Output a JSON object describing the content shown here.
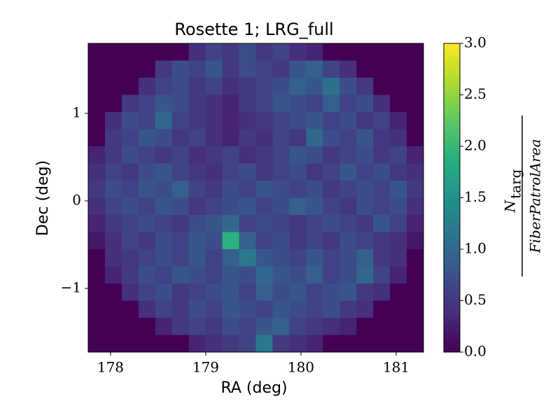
{
  "chart_data": {
    "type": "heatmap",
    "title": "Rosette 1; LRG_full",
    "x_label": "RA (deg)",
    "y_label": "Dec (deg)",
    "xlim": [
      177.765,
      181.287
    ],
    "ylim": [
      -1.728,
      1.8
    ],
    "xticks": [
      178,
      179,
      180,
      181
    ],
    "yticks": [
      {
        "value": -1,
        "label": "−1"
      },
      0,
      1
    ],
    "colormap": "viridis",
    "clim": [
      0,
      3
    ],
    "cticks": [
      {
        "value": 0,
        "label": "0.0"
      },
      0.5,
      {
        "value": 1,
        "label": "1.0"
      },
      1.5,
      {
        "value": 2,
        "label": "2.0"
      },
      2.5,
      {
        "value": 3,
        "label": "3.0"
      }
    ],
    "colorbar_label": {
      "numerator": "N",
      "numerator_subscript": "targ",
      "denominator": "FiberPatrolArea"
    },
    "z": [
      [
        0,
        0,
        0,
        0,
        0,
        0,
        0.4,
        0.6,
        0.5,
        0.7,
        0.5,
        0.6,
        0.4,
        0.3,
        0,
        0,
        0,
        0,
        0,
        0
      ],
      [
        0,
        0,
        0,
        0,
        0.5,
        0.7,
        0.6,
        0.8,
        0.5,
        0.7,
        0.6,
        0.5,
        0.8,
        0.9,
        0.6,
        0.4,
        0,
        0,
        0,
        0
      ],
      [
        0,
        0,
        0,
        0.4,
        0.6,
        0.7,
        0.5,
        0.6,
        0.4,
        0.5,
        0.6,
        0.7,
        0.9,
        0.8,
        1.1,
        0.7,
        0.5,
        0,
        0,
        0
      ],
      [
        0,
        0,
        0.5,
        0.6,
        0.8,
        0.7,
        0.5,
        0.4,
        0.3,
        0.5,
        0.6,
        0.8,
        0.7,
        0.6,
        0.9,
        0.6,
        0.7,
        0.4,
        0,
        0
      ],
      [
        0,
        0.4,
        0.7,
        0.6,
        1.0,
        0.6,
        0.5,
        0.4,
        0.3,
        0.4,
        0.5,
        0.6,
        0.7,
        0.8,
        0.6,
        0.7,
        0.5,
        0.6,
        0.3,
        0
      ],
      [
        0,
        0.5,
        0.6,
        0.8,
        0.7,
        0.5,
        0.6,
        0.4,
        0.3,
        0.5,
        0.4,
        0.6,
        0.5,
        1.0,
        0.7,
        0.6,
        0.8,
        0.5,
        0.4,
        0
      ],
      [
        0.3,
        0.5,
        0.7,
        0.6,
        0.5,
        0.6,
        0.4,
        0.5,
        0.6,
        0.4,
        0.5,
        0.6,
        0.8,
        0.7,
        0.5,
        0.6,
        0.7,
        0.5,
        0.6,
        0.3
      ],
      [
        0.4,
        0.6,
        0.5,
        0.7,
        0.8,
        0.6,
        0.5,
        0.4,
        0.6,
        0.7,
        0.5,
        0.6,
        0.7,
        0.5,
        0.6,
        0.8,
        0.6,
        0.7,
        0.5,
        0.4
      ],
      [
        0.5,
        0.7,
        0.6,
        0.8,
        0.7,
        0.9,
        0.6,
        0.5,
        0.7,
        0.6,
        0.8,
        0.7,
        0.6,
        0.7,
        0.5,
        0.6,
        0.7,
        0.6,
        0.8,
        0.5
      ],
      [
        0.4,
        0.6,
        0.7,
        0.6,
        0.8,
        0.7,
        0.5,
        0.6,
        0.7,
        0.8,
        0.6,
        0.7,
        0.9,
        0.8,
        0.6,
        0.5,
        0.7,
        0.6,
        0.7,
        0.4
      ],
      [
        0.3,
        0.5,
        0.6,
        0.7,
        0.6,
        0.5,
        0.7,
        0.8,
        1.0,
        0.6,
        0.7,
        0.6,
        0.5,
        0.6,
        0.7,
        0.6,
        0.5,
        0.8,
        0.6,
        0.3
      ],
      [
        0.2,
        0.4,
        0.6,
        0.5,
        0.7,
        0.6,
        0.8,
        0.7,
        1.9,
        0.9,
        0.6,
        0.7,
        0.5,
        0.6,
        0.5,
        0.7,
        0.6,
        0.5,
        0.4,
        0.2
      ],
      [
        0,
        0.4,
        0.5,
        0.6,
        0.7,
        0.6,
        0.8,
        0.6,
        0.9,
        1.2,
        0.8,
        0.7,
        0.6,
        0.8,
        0.6,
        0.7,
        0.9,
        0.5,
        0.4,
        0
      ],
      [
        0,
        0.3,
        0.5,
        0.7,
        0.6,
        0.8,
        0.7,
        0.6,
        0.8,
        0.7,
        1.0,
        0.8,
        0.7,
        0.9,
        0.6,
        0.7,
        1.0,
        0.6,
        0.3,
        0
      ],
      [
        0,
        0,
        0.4,
        0.6,
        0.7,
        0.5,
        0.6,
        0.7,
        0.8,
        0.6,
        0.9,
        0.7,
        0.8,
        0.6,
        0.7,
        0.8,
        0.5,
        0.4,
        0,
        0
      ],
      [
        0,
        0,
        0,
        0.4,
        0.6,
        0.5,
        0.7,
        0.6,
        0.8,
        0.7,
        0.6,
        0.8,
        0.7,
        0.6,
        0.7,
        0.5,
        0.4,
        0,
        0,
        0
      ],
      [
        0,
        0,
        0,
        0,
        0.3,
        0.5,
        0.6,
        0.5,
        0.7,
        0.6,
        0.8,
        0.9,
        0.6,
        0.5,
        0.4,
        0.3,
        0,
        0,
        0,
        0
      ],
      [
        0,
        0,
        0,
        0,
        0,
        0,
        0.3,
        0.4,
        0.5,
        0.6,
        1.2,
        0.5,
        0.4,
        0.3,
        0,
        0,
        0,
        0,
        0,
        0
      ]
    ]
  }
}
